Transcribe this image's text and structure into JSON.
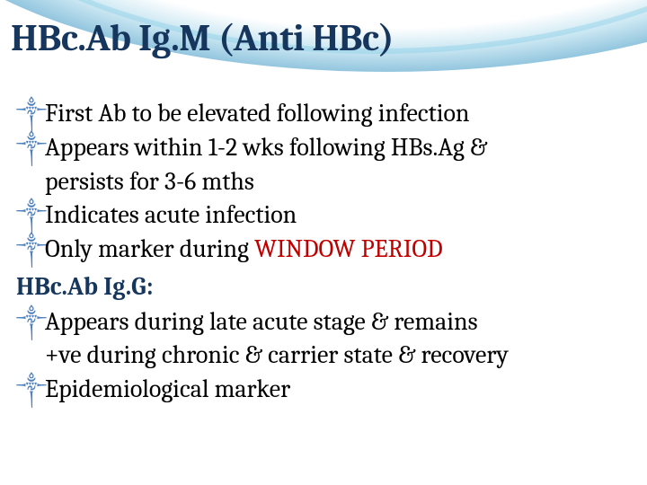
{
  "slide": {
    "title": "HBc.Ab Ig.M (Anti HBc)",
    "title_color": "#17365d",
    "title_fontsize": 42,
    "background_color": "#ffffff",
    "swoosh_colors": [
      "#4aa9d2",
      "#2a8dc0",
      "#146ea8",
      "#0a5a96"
    ],
    "bullet_glyph": "༒",
    "bullet_color": "#4f81bd",
    "body_fontsize": 28,
    "body_color": "#000000",
    "emphasis_color": "#c00000",
    "subheading_color": "#17365d",
    "items": [
      {
        "type": "bullet",
        "text": "First Ab to be elevated following infection"
      },
      {
        "type": "bullet",
        "text": "Appears within 1-2 wks following HBs.Ag &"
      },
      {
        "type": "cont",
        "text": "persists for 3-6 mths"
      },
      {
        "type": "bullet",
        "text": "Indicates acute infection"
      },
      {
        "type": "bullet",
        "prefix": "Only marker during ",
        "emph": "WINDOW PERIOD"
      },
      {
        "type": "subheading",
        "text": "HBc.Ab Ig.G:"
      },
      {
        "type": "bullet",
        "text": "Appears during late acute stage & remains"
      },
      {
        "type": "cont",
        "text": "+ve during chronic & carrier state & recovery"
      },
      {
        "type": "bullet",
        "text": "Epidemiological marker"
      }
    ]
  }
}
